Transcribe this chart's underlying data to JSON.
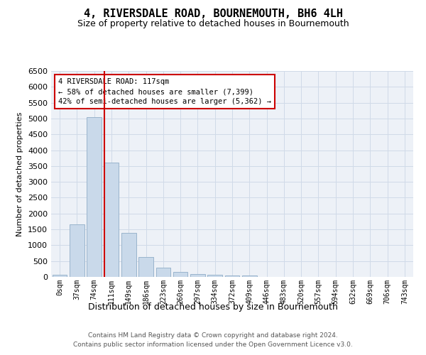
{
  "title": "4, RIVERSDALE ROAD, BOURNEMOUTH, BH6 4LH",
  "subtitle": "Size of property relative to detached houses in Bournemouth",
  "xlabel": "Distribution of detached houses by size in Bournemouth",
  "ylabel": "Number of detached properties",
  "footer_line1": "Contains HM Land Registry data © Crown copyright and database right 2024.",
  "footer_line2": "Contains public sector information licensed under the Open Government Licence v3.0.",
  "bar_labels": [
    "0sqm",
    "37sqm",
    "74sqm",
    "111sqm",
    "149sqm",
    "186sqm",
    "223sqm",
    "260sqm",
    "297sqm",
    "334sqm",
    "372sqm",
    "409sqm",
    "446sqm",
    "483sqm",
    "520sqm",
    "557sqm",
    "594sqm",
    "632sqm",
    "669sqm",
    "706sqm",
    "743sqm"
  ],
  "bar_values": [
    75,
    1650,
    5050,
    3600,
    1400,
    620,
    290,
    150,
    100,
    75,
    50,
    50,
    0,
    0,
    0,
    0,
    0,
    0,
    0,
    0,
    0
  ],
  "bar_color": "#c9d9ea",
  "bar_edgecolor": "#9ab4cc",
  "ylim": [
    0,
    6500
  ],
  "yticks": [
    0,
    500,
    1000,
    1500,
    2000,
    2500,
    3000,
    3500,
    4000,
    4500,
    5000,
    5500,
    6000,
    6500
  ],
  "vline_x": 2.575,
  "vline_color": "#cc0000",
  "annotation_box_color": "#cc0000",
  "property_label": "4 RIVERSDALE ROAD: 117sqm",
  "pct_smaller": "58% of detached houses are smaller (7,399)",
  "pct_larger": "42% of semi-detached houses are larger (5,362)",
  "grid_color": "#d0dae8",
  "bg_color": "#edf1f7"
}
